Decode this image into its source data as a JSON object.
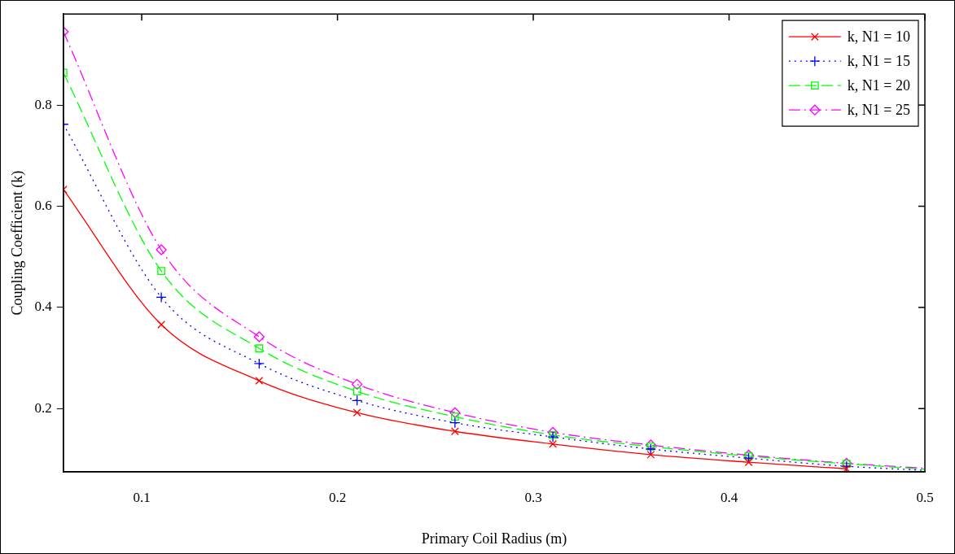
{
  "chart_data": {
    "type": "line",
    "xlabel": "Primary Coil Radius (m)",
    "ylabel": "Coupling Coefficient (k)",
    "x": [
      0.06,
      0.11,
      0.16,
      0.21,
      0.26,
      0.31,
      0.36,
      0.41,
      0.46,
      0.5
    ],
    "series": [
      {
        "name": "k, N1 = 10",
        "color": "#ff0000",
        "marker": "cross",
        "line_style": "solid",
        "values": [
          0.633,
          0.366,
          0.255,
          0.192,
          0.155,
          0.13,
          0.109,
          0.094,
          0.081,
          null
        ]
      },
      {
        "name": "k, N1 = 15",
        "color": "#0000ff",
        "marker": "plus",
        "line_style": "dotted",
        "values": [
          0.762,
          0.42,
          0.289,
          0.216,
          0.172,
          0.144,
          0.12,
          0.102,
          0.086,
          0.078
        ]
      },
      {
        "name": "k, N1 = 20",
        "color": "#00ff00",
        "marker": "square",
        "line_style": "dashed",
        "values": [
          0.864,
          0.472,
          0.319,
          0.234,
          0.184,
          0.148,
          0.125,
          0.106,
          0.091,
          0.08
        ]
      },
      {
        "name": "k, N1 = 25",
        "color": "#ff00ff",
        "marker": "diamond",
        "line_style": "dashdot",
        "values": [
          0.945,
          0.514,
          0.342,
          0.248,
          0.192,
          0.153,
          0.128,
          0.108,
          0.092,
          0.082
        ]
      }
    ],
    "xlim": [
      0.06,
      0.5
    ],
    "xticks": [
      0.1,
      0.2,
      0.3,
      0.4,
      0.5
    ],
    "ylim": [
      0.075,
      0.98
    ],
    "yticks": [
      0.2,
      0.4,
      0.6,
      0.8
    ],
    "grid": false,
    "legend": "top right"
  }
}
